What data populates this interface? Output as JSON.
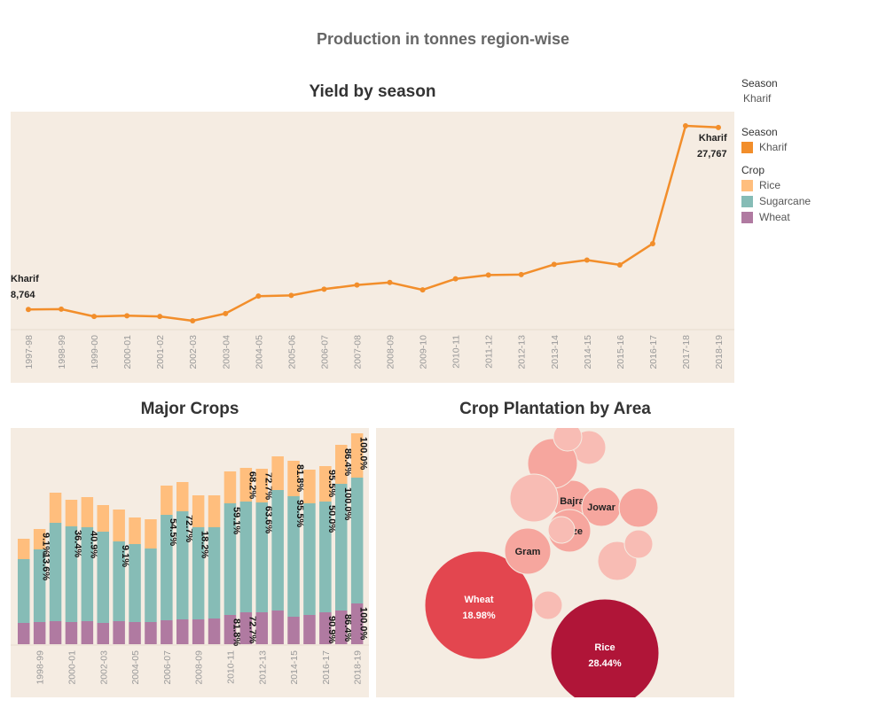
{
  "dashboard": {
    "title": "Production in tonnes region-wise"
  },
  "filter": {
    "label": "Season",
    "value": "Kharif"
  },
  "legend": {
    "season_title": "Season",
    "season_items": [
      {
        "label": "Kharif",
        "color": "#f28e2b"
      }
    ],
    "crop_title": "Crop",
    "crop_items": [
      {
        "label": "Rice",
        "color": "#ffbe7d"
      },
      {
        "label": "Sugarcane",
        "color": "#86bcb6"
      },
      {
        "label": "Wheat",
        "color": "#b07aa1"
      }
    ]
  },
  "yield_chart": {
    "title": "Yield by season",
    "start_label": {
      "name": "Kharif",
      "value": "8,764"
    },
    "end_label": {
      "name": "Kharif",
      "value": "27,767"
    }
  },
  "crops_chart": {
    "title": "Major Crops"
  },
  "bubble_chart": {
    "title": "Crop Plantation by Area"
  },
  "chart_data": [
    {
      "type": "line",
      "title": "Yield by season",
      "series": [
        {
          "name": "Kharif",
          "color": "#f28e2b",
          "values": [
            8764,
            8800,
            8050,
            8120,
            8050,
            7600,
            8350,
            10150,
            10220,
            10870,
            11300,
            11560,
            10800,
            11940,
            12330,
            12380,
            13430,
            13880,
            13380,
            15580,
            27767,
            27600
          ]
        }
      ],
      "x": [
        "1997-98",
        "1998-99",
        "1999-00",
        "2000-01",
        "2001-02",
        "2002-03",
        "2003-04",
        "2004-05",
        "2005-06",
        "2006-07",
        "2007-08",
        "2008-09",
        "2009-10",
        "2010-11",
        "2011-12",
        "2012-13",
        "2013-14",
        "2014-15",
        "2015-16",
        "2016-17",
        "2017-18",
        "2018-19"
      ],
      "grid": false
    },
    {
      "type": "bar",
      "title": "Major Crops",
      "stacked": true,
      "categories": [
        "1997-98",
        "1998-99",
        "1999-00",
        "2000-01",
        "2001-02",
        "2002-03",
        "2003-04",
        "2004-05",
        "2005-06",
        "2006-07",
        "2007-08",
        "2008-09",
        "2009-10",
        "2010-11",
        "2011-12",
        "2012-13",
        "2013-14",
        "2014-15",
        "2015-16",
        "2016-17",
        "2017-18",
        "2018-19"
      ],
      "x_tick_labels": [
        "1998-99",
        "2000-01",
        "2002-03",
        "2004-05",
        "2006-07",
        "2008-09",
        "2010-11",
        "2012-13",
        "2014-15",
        "2016-17",
        "2018-19"
      ],
      "series": [
        {
          "name": "Wheat",
          "color": "#b07aa1",
          "values": [
            24,
            25,
            26,
            25,
            26,
            24,
            26,
            25,
            25,
            27,
            28,
            28,
            29,
            33,
            36,
            36,
            38,
            31,
            33,
            36,
            38,
            46
          ],
          "labels": [
            "",
            "",
            "",
            "",
            "",
            "",
            "",
            "",
            "",
            "",
            "",
            "",
            "",
            "81.8%",
            "72.7%",
            "",
            "",
            "",
            "",
            "90.9%",
            "86.4%",
            "100.0%"
          ]
        },
        {
          "name": "Sugarcane",
          "color": "#86bcb6",
          "values": [
            72,
            82,
            111,
            108,
            106,
            103,
            90,
            88,
            83,
            119,
            122,
            104,
            103,
            126,
            125,
            124,
            136,
            136,
            126,
            125,
            143,
            142
          ],
          "labels": [
            "",
            "13.6%",
            "",
            "36.4%",
            "40.9%",
            "",
            "9.1%",
            "",
            "",
            "54.5%",
            "72.7%",
            "18.2%",
            "",
            "59.1%",
            "",
            "63.6%",
            "",
            "95.5%",
            "",
            "50.0%",
            "100.0%",
            ""
          ]
        },
        {
          "name": "Rice",
          "color": "#ffbe7d",
          "values": [
            23,
            23,
            34,
            30,
            34,
            30,
            36,
            30,
            33,
            33,
            33,
            36,
            36,
            36,
            38,
            38,
            38,
            40,
            38,
            40,
            44,
            50
          ],
          "labels": [
            "",
            "9.1%",
            "",
            "",
            "",
            "",
            "",
            "",
            "",
            "",
            "",
            "",
            "",
            "",
            "68.2%",
            "72.7%",
            "",
            "81.8%",
            "",
            "95.5%",
            "86.4%",
            "100.0%"
          ]
        }
      ],
      "title_y": ""
    },
    {
      "type": "bubble",
      "title": "Crop Plantation by Area",
      "bubbles": [
        {
          "label": "Rice",
          "value": "28.44%",
          "color": "#b01538"
        },
        {
          "label": "Wheat",
          "value": "18.98%",
          "color": "#e3464f"
        },
        {
          "label": "Gram",
          "color": "#f6a69e"
        },
        {
          "label": "Bajra",
          "color": "#f6a69e"
        },
        {
          "label": "Jowar",
          "color": "#f6a69e"
        },
        {
          "label": "Maize",
          "color": "#f6a69e"
        },
        {
          "label": "",
          "color": "#f6a69e"
        },
        {
          "label": "",
          "color": "#f8bcb4"
        },
        {
          "label": "",
          "color": "#f6a69e"
        },
        {
          "label": "",
          "color": "#f8bcb4"
        },
        {
          "label": "",
          "color": "#f8bcb4"
        },
        {
          "label": "",
          "color": "#f8bcb4"
        },
        {
          "label": "",
          "color": "#f8bcb4"
        },
        {
          "label": "",
          "color": "#f8bcb4"
        },
        {
          "label": "",
          "color": "#f8bcb4"
        }
      ]
    }
  ]
}
